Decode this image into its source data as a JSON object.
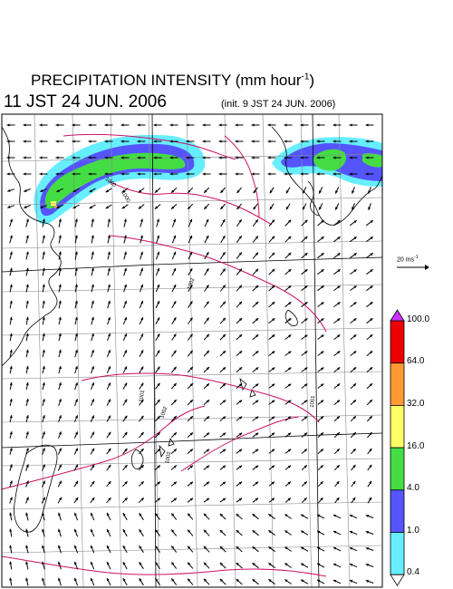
{
  "header": {
    "title": "PRECIPITATION INTENSITY (mm hour",
    "title_exp": "-1",
    "title_close": ")",
    "valid_time": "11 JST 24 JUN. 2006",
    "init_time": "(init. 9 JST 24 JUN. 2006)"
  },
  "reference_vector": {
    "label": "20 ms",
    "exp": "-1"
  },
  "colorbar": {
    "labels": [
      "100.0",
      "64.0",
      "32.0",
      "16.0",
      "4.0",
      "1.0",
      "0.4"
    ],
    "colors": [
      "#ee0000",
      "#ff9933",
      "#ffff66",
      "#44dd44",
      "#5555ff",
      "#66eeff"
    ],
    "over_color": "#cc33ff"
  },
  "contour_labels": [
    "1000",
    "1002",
    "1002",
    "1001",
    "1002",
    "1001",
    "1000"
  ]
}
